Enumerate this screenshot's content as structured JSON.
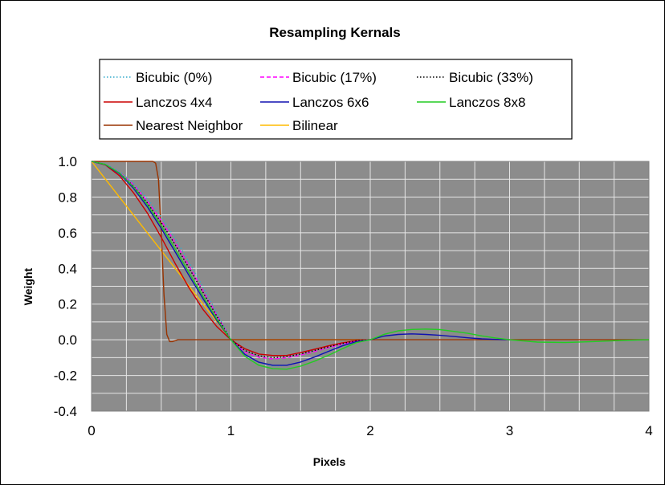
{
  "chart_data": {
    "type": "line",
    "title": "Resampling Kernals",
    "xlabel": "Pixels",
    "ylabel": "Weight",
    "xlim": [
      0,
      4
    ],
    "ylim": [
      -0.4,
      1.0
    ],
    "x_ticks": [
      "0",
      "1",
      "2",
      "3",
      "4"
    ],
    "y_ticks": [
      "-0.4",
      "-0.2",
      "0.0",
      "0.2",
      "0.4",
      "0.6",
      "0.8",
      "1.0"
    ],
    "grid": true,
    "plot_background": "#8c8c8c",
    "legend_position": "top",
    "series": [
      {
        "name": "Bicubic (0%)",
        "color": "#33aacc",
        "dash": "dotted",
        "x": [
          0,
          0.1,
          0.2,
          0.3,
          0.4,
          0.5,
          0.6,
          0.7,
          0.8,
          0.9,
          1.0,
          1.1,
          1.2,
          1.3,
          1.4,
          1.5,
          1.6,
          1.7,
          1.8,
          1.9,
          2.0
        ],
        "y": [
          1.0,
          0.985,
          0.944,
          0.878,
          0.792,
          0.688,
          0.568,
          0.436,
          0.296,
          0.149,
          0.0,
          -0.081,
          -0.128,
          -0.147,
          -0.144,
          -0.125,
          -0.096,
          -0.063,
          -0.032,
          -0.009,
          0.0
        ]
      },
      {
        "name": "Bicubic (17%)",
        "color": "#ff00ff",
        "dash": "dashed",
        "x": [
          0,
          0.1,
          0.2,
          0.3,
          0.4,
          0.5,
          0.6,
          0.7,
          0.8,
          0.9,
          1.0,
          1.1,
          1.2,
          1.3,
          1.4,
          1.5,
          1.6,
          1.7,
          1.8,
          1.9,
          2.0
        ],
        "y": [
          1.0,
          0.983,
          0.938,
          0.868,
          0.777,
          0.668,
          0.546,
          0.413,
          0.275,
          0.136,
          0.0,
          -0.069,
          -0.098,
          -0.107,
          -0.101,
          -0.086,
          -0.066,
          -0.044,
          -0.024,
          -0.008,
          0.0
        ]
      },
      {
        "name": "Bicubic (33%)",
        "color": "#000000",
        "dash": "dotted",
        "x": [
          0,
          0.1,
          0.2,
          0.3,
          0.4,
          0.5,
          0.6,
          0.7,
          0.8,
          0.9,
          1.0,
          1.1,
          1.2,
          1.3,
          1.4,
          1.5,
          1.6,
          1.7,
          1.8,
          1.9,
          2.0
        ],
        "y": [
          1.0,
          0.983,
          0.935,
          0.862,
          0.767,
          0.656,
          0.533,
          0.402,
          0.266,
          0.131,
          0.0,
          -0.06,
          -0.09,
          -0.1,
          -0.095,
          -0.08,
          -0.06,
          -0.04,
          -0.021,
          -0.006,
          0.0
        ]
      },
      {
        "name": "Lanczos 4x4",
        "color": "#cc0000",
        "dash": "solid",
        "x": [
          0,
          0.1,
          0.2,
          0.3,
          0.4,
          0.5,
          0.6,
          0.7,
          0.8,
          0.9,
          1.0,
          1.1,
          1.2,
          1.3,
          1.4,
          1.5,
          1.6,
          1.7,
          1.8,
          1.9,
          2.0
        ],
        "y": [
          1.0,
          0.98,
          0.92,
          0.825,
          0.711,
          0.574,
          0.428,
          0.291,
          0.17,
          0.073,
          0.0,
          -0.05,
          -0.08,
          -0.088,
          -0.088,
          -0.072,
          -0.053,
          -0.034,
          -0.017,
          -0.005,
          0.0
        ]
      },
      {
        "name": "Lanczos 6x6",
        "color": "#1010b0",
        "dash": "solid",
        "x": [
          0,
          0.1,
          0.2,
          0.3,
          0.4,
          0.5,
          0.6,
          0.7,
          0.8,
          0.9,
          1.0,
          1.1,
          1.2,
          1.3,
          1.4,
          1.5,
          1.6,
          1.7,
          1.8,
          1.9,
          2.0,
          2.1,
          2.2,
          2.3,
          2.4,
          2.5,
          2.6,
          2.7,
          2.8,
          2.9,
          3.0
        ],
        "y": [
          1.0,
          0.982,
          0.931,
          0.85,
          0.746,
          0.624,
          0.493,
          0.36,
          0.23,
          0.107,
          0.0,
          -0.082,
          -0.126,
          -0.143,
          -0.143,
          -0.125,
          -0.097,
          -0.065,
          -0.034,
          -0.01,
          0.0,
          0.021,
          0.03,
          0.033,
          0.03,
          0.025,
          0.018,
          0.011,
          0.005,
          0.002,
          0.0
        ]
      },
      {
        "name": "Lanczos 8x8",
        "color": "#22cc22",
        "dash": "solid",
        "x": [
          0,
          0.1,
          0.2,
          0.3,
          0.4,
          0.5,
          0.6,
          0.7,
          0.8,
          0.9,
          1.0,
          1.1,
          1.2,
          1.3,
          1.4,
          1.5,
          1.6,
          1.7,
          1.8,
          1.9,
          2.0,
          2.1,
          2.2,
          2.3,
          2.4,
          2.5,
          2.6,
          2.7,
          2.8,
          2.9,
          3.0,
          3.2,
          3.4,
          3.6,
          3.8,
          4.0
        ],
        "y": [
          1.0,
          0.983,
          0.935,
          0.858,
          0.758,
          0.64,
          0.51,
          0.376,
          0.243,
          0.116,
          0.0,
          -0.093,
          -0.143,
          -0.162,
          -0.165,
          -0.148,
          -0.12,
          -0.087,
          -0.05,
          -0.016,
          0.0,
          0.031,
          0.05,
          0.058,
          0.06,
          0.057,
          0.047,
          0.036,
          0.022,
          0.01,
          0.0,
          -0.013,
          -0.015,
          -0.01,
          -0.004,
          0.0
        ]
      },
      {
        "name": "Nearest Neighbor",
        "color": "#993300",
        "dash": "solid",
        "x": [
          0,
          0.44,
          0.46,
          0.48,
          0.5,
          0.52,
          0.54,
          0.56,
          0.58,
          0.62,
          1.0,
          4.0
        ],
        "y": [
          1.0,
          1.0,
          0.99,
          0.9,
          0.6,
          0.25,
          0.03,
          -0.01,
          -0.01,
          0.0,
          0.0,
          0.0
        ]
      },
      {
        "name": "Bilinear",
        "color": "#ffbb00",
        "dash": "solid",
        "x": [
          0,
          1,
          2
        ],
        "y": [
          1.0,
          0.0,
          0.0
        ]
      }
    ]
  }
}
